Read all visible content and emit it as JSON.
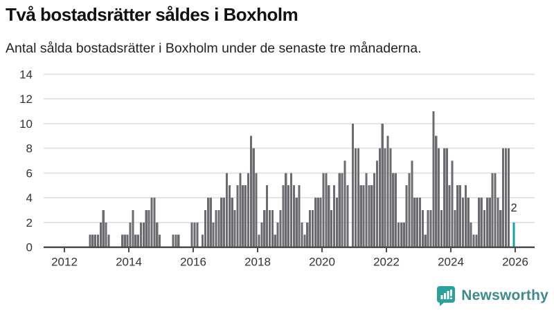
{
  "header": {
    "title": "Två bostadsrätter såldes i Boxholm",
    "subtitle": "Antal sålda bostadsrätter i Boxholm under de senaste tre månaderna."
  },
  "annotation": {
    "last_value_label": "2"
  },
  "logo": {
    "text": "Newsworthy",
    "icon": "newsworthy-bubble-chart-icon"
  },
  "colors": {
    "bar": "#6b6b70",
    "highlight": "#13a3a0",
    "grid": "#e4e4e4",
    "axis": "#4d4d4d",
    "tick_text": "#333333",
    "title_text": "#111111",
    "logo_text": "#3f8b8c",
    "logo_icon": "#2aa29b"
  },
  "chart_data": {
    "type": "bar",
    "title": "Två bostadsrätter såldes i Boxholm",
    "subtitle": "Antal sålda bostadsrätter i Boxholm under de senaste tre månaderna.",
    "unit": "sålda bostadsrätter per 3 månader",
    "x_start_month": "2012-01",
    "x_end_month": "2025-12",
    "values": [
      0,
      0,
      0,
      0,
      0,
      0,
      0,
      0,
      0,
      1,
      1,
      1,
      1,
      2,
      3,
      2,
      1,
      0,
      0,
      0,
      0,
      1,
      1,
      1,
      2,
      3,
      1,
      1,
      2,
      2,
      3,
      3,
      4,
      4,
      2,
      1,
      0,
      0,
      0,
      0,
      1,
      1,
      1,
      0,
      0,
      0,
      0,
      2,
      2,
      2,
      0,
      1,
      3,
      4,
      4,
      2,
      3,
      3,
      4,
      4,
      6,
      5,
      4,
      3,
      5,
      6,
      5,
      5,
      6,
      9,
      8,
      6,
      1,
      2,
      3,
      5,
      3,
      3,
      1,
      2,
      3,
      5,
      6,
      5,
      6,
      5,
      4,
      5,
      2,
      1,
      2,
      3,
      3,
      4,
      4,
      4,
      6,
      6,
      5,
      3,
      5,
      4,
      6,
      6,
      7,
      5,
      0,
      10,
      8,
      8,
      5,
      5,
      6,
      5,
      5,
      6,
      7,
      8,
      10,
      8,
      9,
      8,
      6,
      6,
      2,
      2,
      2,
      5,
      6,
      7,
      4,
      4,
      4,
      3,
      1,
      3,
      3,
      11,
      9,
      8,
      3,
      8,
      8,
      5,
      7,
      3,
      5,
      5,
      4,
      5,
      4,
      2,
      1,
      1,
      4,
      4,
      3,
      4,
      4,
      6,
      6,
      4,
      3,
      8,
      8,
      8,
      0,
      2
    ],
    "highlight_last_value": 2,
    "highlight_last": true,
    "yticks": [
      0,
      2,
      4,
      6,
      8,
      10,
      12,
      14
    ],
    "ylim": [
      0,
      14
    ],
    "xticks": [
      2012,
      2014,
      2016,
      2018,
      2020,
      2022,
      2024,
      2026
    ],
    "grid": true,
    "legend": "none"
  }
}
